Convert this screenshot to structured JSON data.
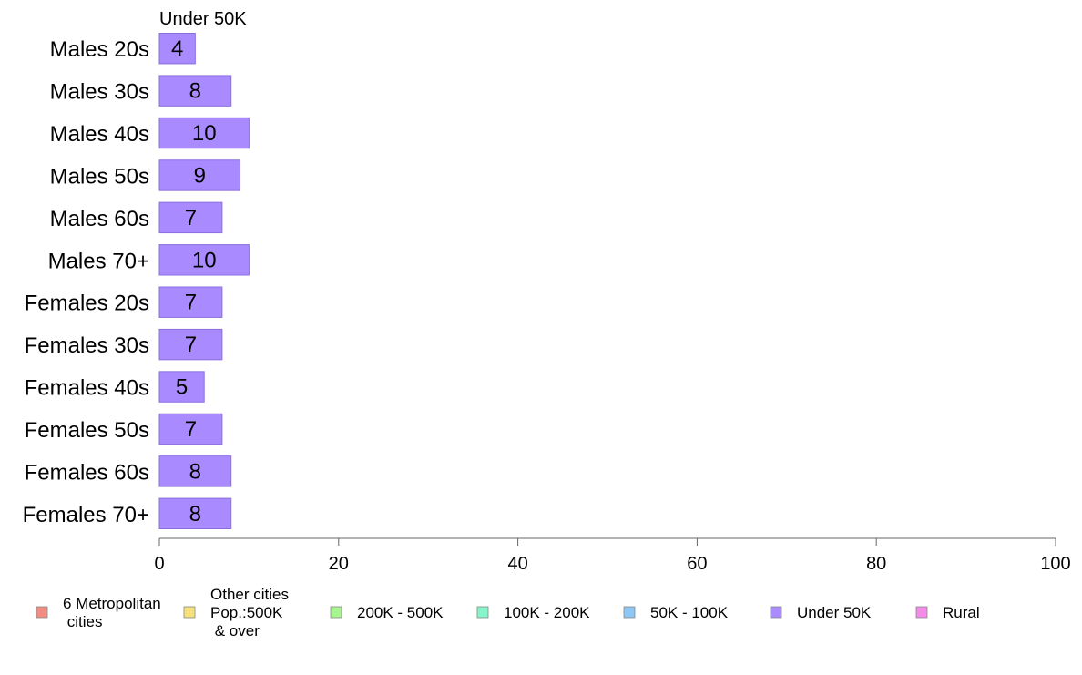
{
  "chart_data": {
    "type": "bar",
    "orientation": "horizontal",
    "title": "Under 50K",
    "categories": [
      "Males 20s",
      "Males 30s",
      "Males 40s",
      "Males 50s",
      "Males 60s",
      "Males 70+",
      "Females 20s",
      "Females 30s",
      "Females 40s",
      "Females 50s",
      "Females 60s",
      "Females 70+"
    ],
    "values": [
      4,
      8,
      10,
      9,
      7,
      10,
      7,
      7,
      5,
      7,
      8,
      8
    ],
    "xlim": [
      0,
      100
    ],
    "xticks": [
      0,
      20,
      40,
      60,
      80,
      100
    ],
    "xlabel": "",
    "ylabel": "",
    "grid": false,
    "bar_color": "#a98bff",
    "bar_border": "#8a6fdd",
    "legend_position": "bottom",
    "legend": [
      {
        "label": "6 Metropolitan\n cities",
        "color": "#f28b82"
      },
      {
        "label": "Other cities\nPop.:500K\n & over",
        "color": "#f5e07a"
      },
      {
        "label": "200K - 500K",
        "color": "#a6f58f"
      },
      {
        "label": "100K - 200K",
        "color": "#86f5c9"
      },
      {
        "label": "50K - 100K",
        "color": "#8cc7f5"
      },
      {
        "label": "Under 50K",
        "color": "#a98bff"
      },
      {
        "label": "Rural",
        "color": "#f58ae8"
      }
    ]
  }
}
